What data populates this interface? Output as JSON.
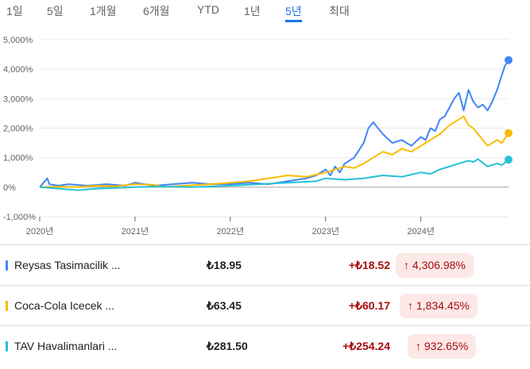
{
  "tabs": [
    "1일",
    "5일",
    "1개월",
    "6개월",
    "YTD",
    "1년",
    "5년",
    "최대"
  ],
  "active_tab": "5년",
  "chart_data": {
    "type": "line",
    "y_tick_labels": [
      "5,000%",
      "4,000%",
      "3,000%",
      "2,000%",
      "1,000%",
      "0%",
      "-1,000%"
    ],
    "y_ticks": [
      5000,
      4000,
      3000,
      2000,
      1000,
      0,
      -1000
    ],
    "ylim": [
      -1000,
      5000
    ],
    "x_tick_labels": [
      "2020년",
      "2021년",
      "2022년",
      "2023년",
      "2024년"
    ],
    "x_ticks": [
      2020.0,
      2021.0,
      2022.0,
      2023.0,
      2024.0
    ],
    "xlim": [
      2020.0,
      2024.92
    ],
    "grid": true,
    "series": [
      {
        "name": "Reysas Tasimacilik ...",
        "color": "#4285f4",
        "x": [
          2020.0,
          2020.08,
          2020.1,
          2020.2,
          2020.3,
          2020.5,
          2020.7,
          2020.9,
          2021.0,
          2021.2,
          2021.4,
          2021.6,
          2021.8,
          2022.0,
          2022.2,
          2022.4,
          2022.6,
          2022.8,
          2022.9,
          2023.0,
          2023.05,
          2023.1,
          2023.15,
          2023.2,
          2023.3,
          2023.4,
          2023.45,
          2023.5,
          2023.6,
          2023.7,
          2023.8,
          2023.9,
          2024.0,
          2024.05,
          2024.1,
          2024.15,
          2024.2,
          2024.25,
          2024.3,
          2024.35,
          2024.4,
          2024.45,
          2024.5,
          2024.55,
          2024.6,
          2024.65,
          2024.7,
          2024.75,
          2024.8,
          2024.85,
          2024.88,
          2024.92
        ],
        "values": [
          0,
          300,
          100,
          50,
          100,
          50,
          100,
          50,
          150,
          50,
          100,
          150,
          100,
          100,
          150,
          100,
          200,
          300,
          400,
          600,
          400,
          700,
          500,
          800,
          1000,
          1500,
          2000,
          2200,
          1800,
          1500,
          1600,
          1400,
          1700,
          1600,
          2000,
          1900,
          2300,
          2400,
          2700,
          3000,
          3200,
          2600,
          3300,
          2900,
          2700,
          2800,
          2600,
          2900,
          3300,
          3800,
          4100,
          4307
        ]
      },
      {
        "name": "Coca-Cola Icecek ...",
        "color": "#f9bc00",
        "x": [
          2020.0,
          2020.2,
          2020.4,
          2020.6,
          2020.8,
          2021.0,
          2021.2,
          2021.3,
          2021.5,
          2021.8,
          2022.0,
          2022.2,
          2022.4,
          2022.6,
          2022.8,
          2023.0,
          2023.2,
          2023.3,
          2023.4,
          2023.5,
          2023.6,
          2023.7,
          2023.8,
          2023.9,
          2024.0,
          2024.1,
          2024.2,
          2024.3,
          2024.4,
          2024.45,
          2024.5,
          2024.55,
          2024.6,
          2024.7,
          2024.75,
          2024.8,
          2024.85,
          2024.92
        ],
        "values": [
          0,
          20,
          0,
          50,
          30,
          100,
          80,
          0,
          50,
          100,
          150,
          200,
          300,
          400,
          350,
          500,
          700,
          650,
          800,
          1000,
          1200,
          1100,
          1300,
          1200,
          1400,
          1600,
          1800,
          2100,
          2300,
          2400,
          2100,
          2000,
          1800,
          1400,
          1500,
          1600,
          1500,
          1834
        ]
      },
      {
        "name": "TAV Havalimanlari ...",
        "color": "#24c1d5",
        "x": [
          2020.0,
          2020.2,
          2020.4,
          2020.6,
          2020.8,
          2021.0,
          2021.3,
          2021.6,
          2022.0,
          2022.3,
          2022.6,
          2022.9,
          2023.0,
          2023.2,
          2023.4,
          2023.6,
          2023.8,
          2024.0,
          2024.1,
          2024.2,
          2024.3,
          2024.4,
          2024.5,
          2024.55,
          2024.6,
          2024.7,
          2024.8,
          2024.85,
          2024.92
        ],
        "values": [
          0,
          -50,
          -100,
          -50,
          -30,
          0,
          20,
          0,
          50,
          100,
          150,
          200,
          300,
          250,
          300,
          400,
          350,
          500,
          450,
          600,
          700,
          800,
          900,
          850,
          950,
          700,
          800,
          750,
          933
        ]
      }
    ]
  },
  "rows": [
    {
      "name": "Reysas Tasimacilik ...",
      "price": "₺18.95",
      "change": "+₺18.52",
      "pct": "4,306.98%",
      "arrow": "↑",
      "color": "#4285f4"
    },
    {
      "name": "Coca-Cola Icecek ...",
      "price": "₺63.45",
      "change": "+₺60.17",
      "pct": "1,834.45%",
      "arrow": "↑",
      "color": "#f9bc00"
    },
    {
      "name": "TAV Havalimanlari ...",
      "price": "₺281.50",
      "change": "+₺254.24",
      "pct": "932.65%",
      "arrow": "↑",
      "color": "#24c1d5"
    }
  ]
}
